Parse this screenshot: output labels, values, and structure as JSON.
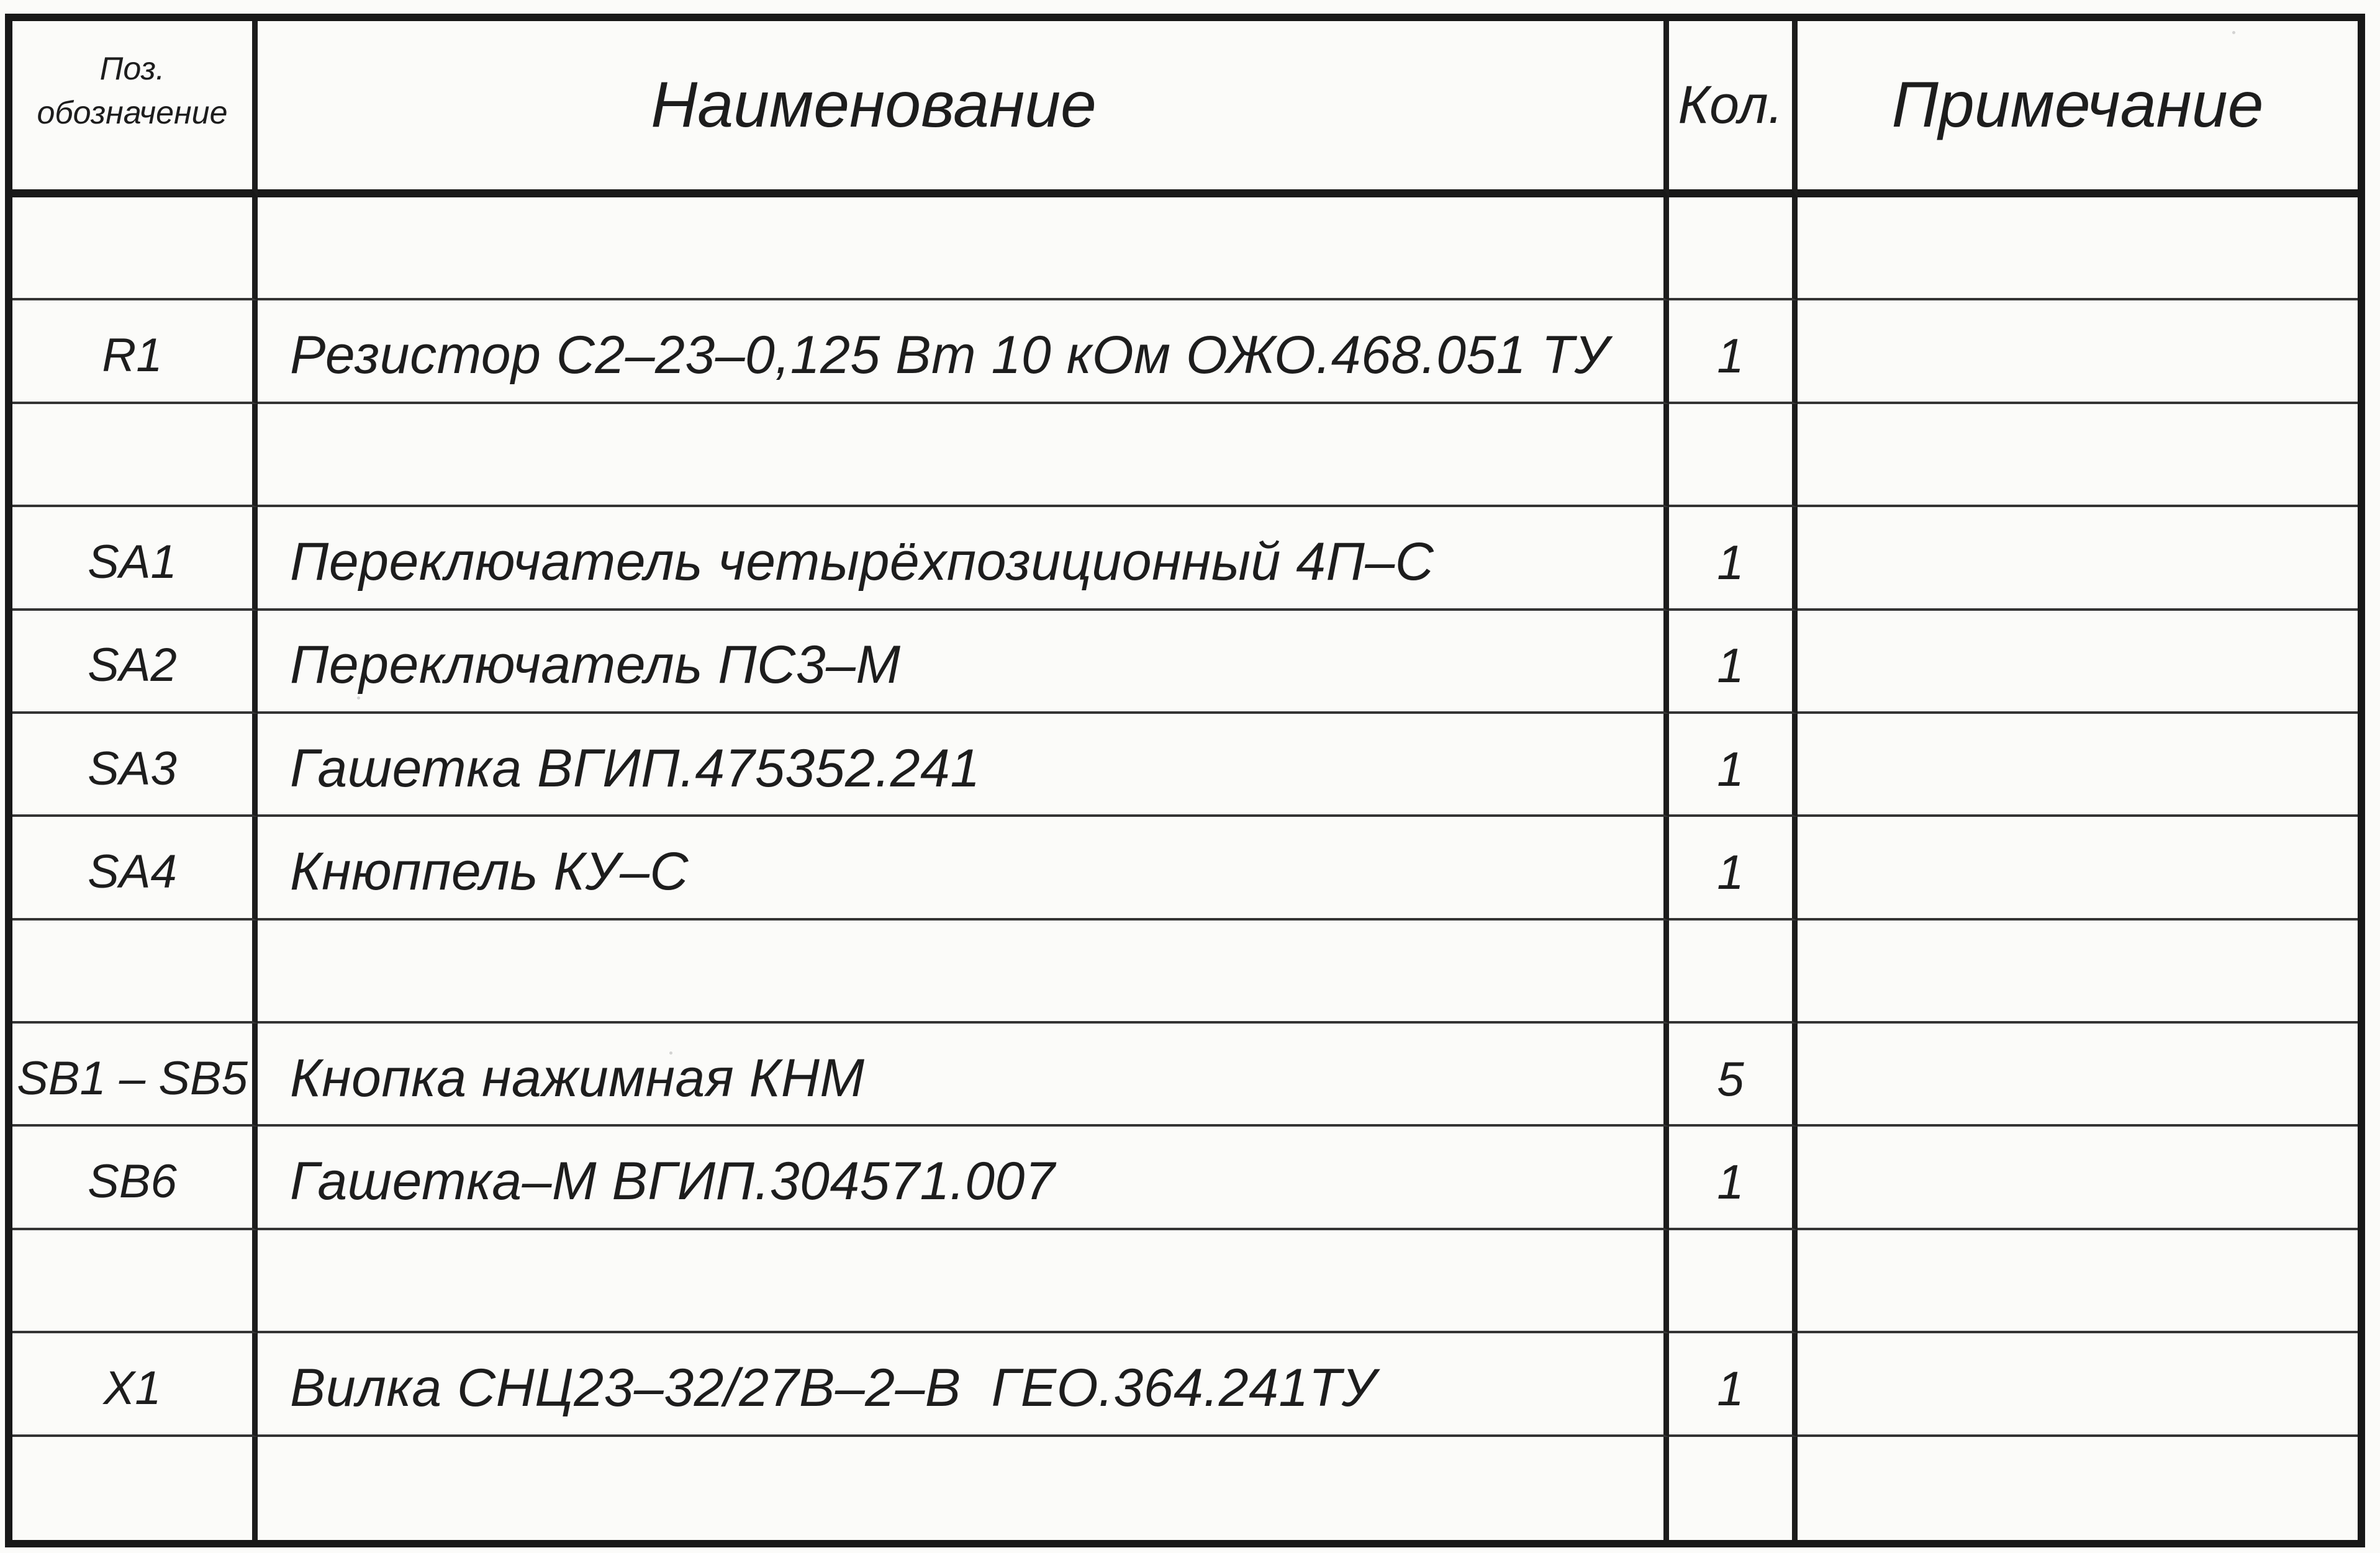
{
  "document": {
    "kind_label": "element list table (scanned engineering sheet)"
  },
  "colors": {
    "paper": "#fbfbf9",
    "ink": "#1d1d1d",
    "thick_line": "#181818",
    "thin_line": "#343434"
  },
  "table": {
    "columns": [
      {
        "key": "pos",
        "label": "Поз.\nобозначение"
      },
      {
        "key": "name",
        "label": "Наименование"
      },
      {
        "key": "qty",
        "label": "Кол."
      },
      {
        "key": "note",
        "label": "Примечание"
      }
    ],
    "rows": [
      {
        "pos": "",
        "name": "",
        "qty": "",
        "note": ""
      },
      {
        "pos": "R1",
        "name": "Резистор С2–23–0,125 Вт 10 кОм ОЖО.468.051 ТУ",
        "qty": "1",
        "note": ""
      },
      {
        "pos": "",
        "name": "",
        "qty": "",
        "note": ""
      },
      {
        "pos": "SA1",
        "name": "Переключатель четырёхпозиционный 4П–С",
        "qty": "1",
        "note": ""
      },
      {
        "pos": "SA2",
        "name": "Переключатель ПС3–М",
        "qty": "1",
        "note": ""
      },
      {
        "pos": "SA3",
        "name": "Гашетка ВГИП.475352.241",
        "qty": "1",
        "note": ""
      },
      {
        "pos": "SA4",
        "name": "Кнюппель КУ–С",
        "qty": "1",
        "note": ""
      },
      {
        "pos": "",
        "name": "",
        "qty": "",
        "note": ""
      },
      {
        "pos": "SB1 – SB5",
        "name": "Кнопка нажимная КНМ",
        "qty": "5",
        "note": ""
      },
      {
        "pos": "SB6",
        "name": "Гашетка–М ВГИП.304571.007",
        "qty": "1",
        "note": ""
      },
      {
        "pos": "",
        "name": "",
        "qty": "",
        "note": ""
      },
      {
        "pos": "X1",
        "name": "Вилка СНЦ23–32/27В–2–В  ГЕО.364.241ТУ",
        "qty": "1",
        "note": ""
      },
      {
        "pos": "",
        "name": "",
        "qty": "",
        "note": ""
      }
    ]
  }
}
